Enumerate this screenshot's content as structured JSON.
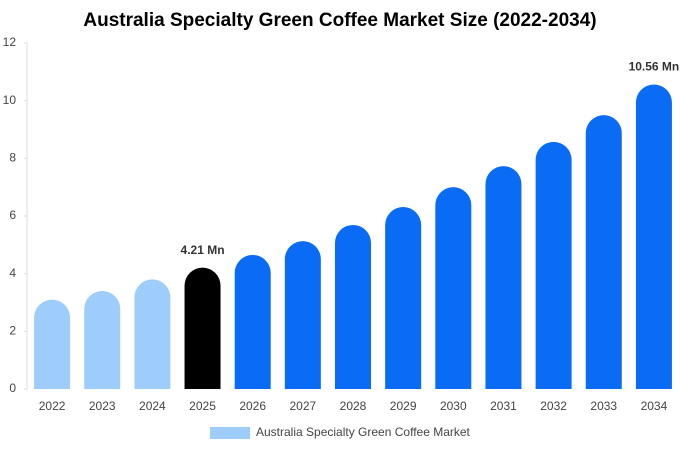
{
  "chart_data": {
    "type": "bar",
    "title": "Australia Specialty Green Coffee Market Size (2022-2034)",
    "categories": [
      "2022",
      "2023",
      "2024",
      "2025",
      "2026",
      "2027",
      "2028",
      "2029",
      "2030",
      "2031",
      "2032",
      "2033",
      "2034"
    ],
    "series": [
      {
        "name": "Australia Specialty Green Coffee Market",
        "color": "#9fcdfb",
        "colors": [
          "#9fcdfb",
          "#9fcdfb",
          "#9fcdfb",
          "#000000",
          "#0a6cf5",
          "#0a6cf5",
          "#0a6cf5",
          "#0a6cf5",
          "#0a6cf5",
          "#0a6cf5",
          "#0a6cf5",
          "#0a6cf5",
          "#0a6cf5"
        ],
        "values": [
          3.1,
          3.4,
          3.8,
          4.21,
          4.65,
          5.13,
          5.69,
          6.31,
          7.0,
          7.73,
          8.57,
          9.5,
          10.56
        ],
        "value_labels": [
          null,
          null,
          null,
          "4.21 Mn",
          null,
          null,
          null,
          null,
          null,
          null,
          null,
          null,
          "10.56 Mn"
        ]
      }
    ],
    "ylim": [
      0,
      12
    ],
    "yticks": [
      0,
      2,
      4,
      6,
      8,
      10,
      12
    ],
    "grid": false,
    "legend": "bottom"
  }
}
